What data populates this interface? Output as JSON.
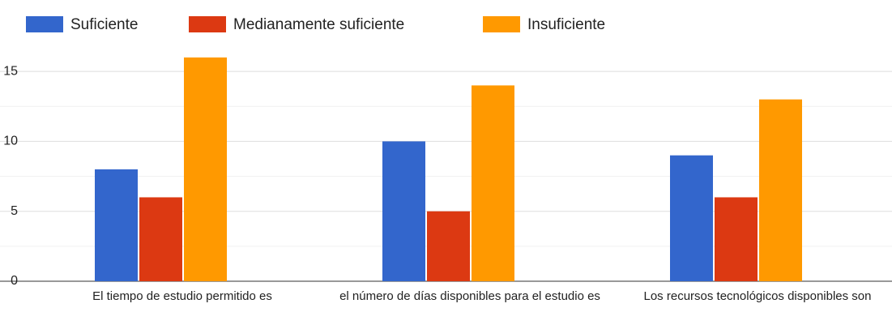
{
  "chart_data": {
    "type": "bar",
    "categories": [
      "El tiempo de estudio permitido es",
      "el número de días disponibles para el estudio es",
      "Los recursos tecnológicos disponibles son"
    ],
    "series": [
      {
        "name": "Suficiente",
        "color": "#3366cc",
        "values": [
          8,
          10,
          9
        ]
      },
      {
        "name": "Medianamente suficiente",
        "color": "#dc3912",
        "values": [
          6,
          5,
          6
        ]
      },
      {
        "name": "Insuficiente",
        "color": "#ff9900",
        "values": [
          16,
          14,
          13
        ]
      }
    ],
    "ylim": [
      0,
      17.5
    ],
    "yticks": [
      0,
      5,
      10,
      15
    ],
    "minor_yticks": [
      2.5,
      7.5,
      12.5
    ],
    "grid": true,
    "legend": "top"
  }
}
